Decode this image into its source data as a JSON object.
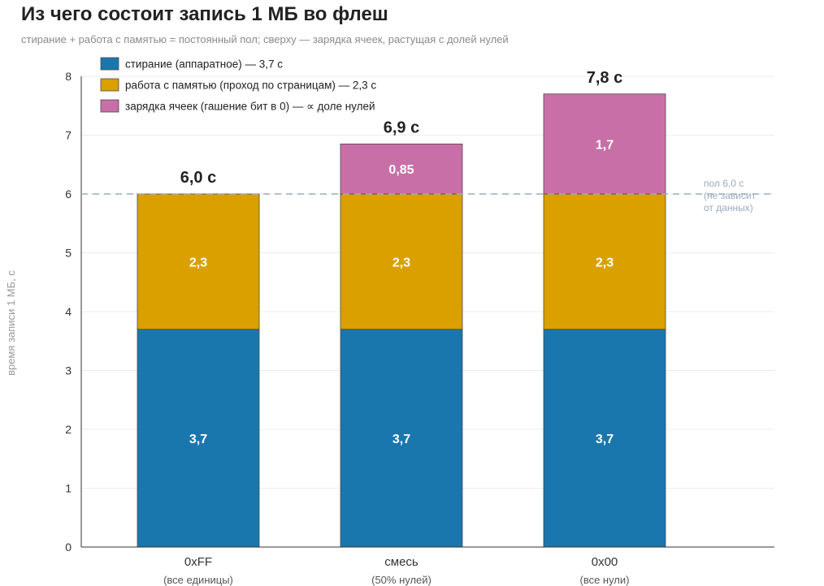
{
  "title": "Из чего состоит запись 1 МБ во флеш",
  "subtitle": "стирание + работа с памятью = постоянный пол; сверху — зарядка ячеек, растущая с долей нулей",
  "chart_data": {
    "type": "bar",
    "stacked": true,
    "categories": [
      "0xFF",
      "смесь",
      "0x00"
    ],
    "category_sublabels": [
      "(все единицы)",
      "(50% нулей)",
      "(все нули)"
    ],
    "series": [
      {
        "name": "стирание (аппаратное) — 3,7 с",
        "color": "#1a77ae",
        "values": [
          3.7,
          3.7,
          3.7
        ],
        "labels": [
          "3,7",
          "3,7",
          "3,7"
        ]
      },
      {
        "name": "работа с памятью (проход по страницам) — 2,3 с",
        "color": "#d9a000",
        "values": [
          2.3,
          2.3,
          2.3
        ],
        "labels": [
          "2,3",
          "2,3",
          "2,3"
        ]
      },
      {
        "name": "зарядка ячеек (гашение бит в 0) — ∝ доле нулей",
        "color": "#c96fa7",
        "values": [
          0,
          0.85,
          1.7
        ],
        "labels": [
          "",
          "0,85",
          "1,7"
        ]
      }
    ],
    "totals": [
      "6,0 с",
      "6,9 с",
      "7,8 с"
    ],
    "ylabel": "время записи 1 МБ, с",
    "ylim": [
      0,
      8
    ],
    "yticks": [
      0,
      1,
      2,
      3,
      4,
      5,
      6,
      7,
      8
    ],
    "grid": true,
    "legend_position": "top-left",
    "reference_line": {
      "value": 6.0,
      "label_lines": [
        "пол 6,0 с",
        "(не зависит",
        "от данных)"
      ],
      "color": "#9aaac0"
    }
  }
}
